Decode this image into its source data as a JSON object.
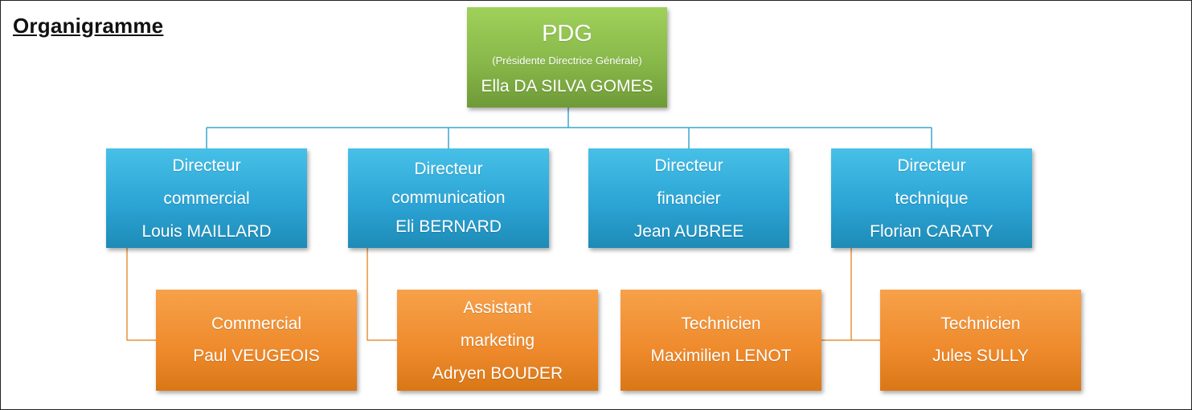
{
  "title": "Organigramme",
  "colors": {
    "ceo": "#88b84a",
    "director": "#2aa2d3",
    "staff": "#ee8a2c",
    "director_line": "#3aa6cf",
    "staff_line": "#e7923a"
  },
  "ceo": {
    "role": "PDG",
    "subtitle": "(Présidente Directrice Générale)",
    "name": "Ella DA SILVA GOMES"
  },
  "directors": [
    {
      "lines": [
        "Directeur",
        "commercial",
        "Louis MAILLARD"
      ]
    },
    {
      "lines": [
        "Directeur",
        "communication",
        "Eli BERNARD"
      ]
    },
    {
      "lines": [
        "Directeur",
        "financier",
        "Jean AUBREE"
      ]
    },
    {
      "lines": [
        "Directeur",
        "technique",
        "Florian CARATY"
      ]
    }
  ],
  "staff": [
    {
      "lines": [
        "Commercial",
        "Paul VEUGEOIS"
      ]
    },
    {
      "lines": [
        "Assistant",
        "marketing",
        "Adryen BOUDER"
      ]
    },
    {
      "lines": [
        "Technicien",
        "Maximilien LENOT"
      ]
    },
    {
      "lines": [
        "Technicien",
        "Jules SULLY"
      ]
    }
  ]
}
